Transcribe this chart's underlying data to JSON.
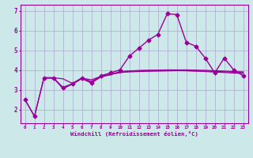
{
  "xlabel": "Windchill (Refroidissement éolien,°C)",
  "background_color": "#cce8e8",
  "line_color": "#990099",
  "grid_color": "#aaaacc",
  "x_ticks": [
    0,
    1,
    2,
    3,
    4,
    5,
    6,
    7,
    8,
    9,
    10,
    11,
    12,
    13,
    14,
    15,
    16,
    17,
    18,
    19,
    20,
    21,
    22,
    23
  ],
  "y_ticks": [
    2,
    3,
    4,
    5,
    6,
    7
  ],
  "xlim": [
    -0.5,
    23.5
  ],
  "ylim": [
    1.3,
    7.3
  ],
  "series": [
    {
      "x": [
        0,
        1,
        2,
        3,
        4,
        5,
        6,
        7,
        8,
        9,
        10,
        11,
        12,
        13,
        14,
        15,
        16,
        17,
        18,
        19,
        20,
        21,
        22,
        23
      ],
      "y": [
        2.5,
        1.65,
        3.6,
        3.6,
        3.1,
        3.3,
        3.6,
        3.35,
        3.7,
        3.85,
        4.0,
        4.7,
        5.1,
        5.5,
        5.8,
        6.85,
        6.8,
        5.4,
        5.2,
        4.6,
        3.85,
        4.6,
        4.0,
        3.7
      ],
      "marker": true,
      "markersize": 2.5,
      "linewidth": 1.0
    },
    {
      "x": [
        2,
        3,
        4,
        5,
        6,
        7,
        8,
        9,
        10,
        11,
        12,
        13,
        14,
        15,
        16,
        17,
        18,
        19,
        20,
        21,
        22,
        23
      ],
      "y": [
        3.6,
        3.6,
        3.05,
        3.28,
        3.56,
        3.33,
        3.65,
        3.75,
        3.92,
        3.95,
        3.97,
        3.98,
        3.99,
        4.0,
        4.0,
        4.0,
        3.99,
        3.98,
        3.96,
        3.94,
        3.92,
        3.9
      ],
      "marker": false,
      "markersize": 0,
      "linewidth": 0.9
    },
    {
      "x": [
        2,
        3,
        4,
        5,
        6,
        7,
        8,
        9,
        10,
        11,
        12,
        13,
        14,
        15,
        16,
        17,
        18,
        19,
        20,
        21,
        22,
        23
      ],
      "y": [
        3.6,
        3.6,
        3.55,
        3.32,
        3.58,
        3.5,
        3.67,
        3.77,
        3.87,
        3.9,
        3.92,
        3.93,
        3.94,
        3.95,
        3.96,
        3.96,
        3.95,
        3.94,
        3.93,
        3.91,
        3.89,
        3.87
      ],
      "marker": false,
      "markersize": 0,
      "linewidth": 0.9
    },
    {
      "x": [
        0,
        1,
        2,
        3,
        4,
        5,
        6,
        7,
        8,
        9,
        10,
        11,
        12,
        13,
        14,
        15,
        16,
        17,
        18,
        19,
        20,
        21,
        22,
        23
      ],
      "y": [
        2.5,
        1.65,
        3.6,
        3.57,
        3.12,
        3.29,
        3.57,
        3.42,
        3.66,
        3.78,
        3.86,
        3.93,
        3.96,
        3.97,
        3.97,
        3.98,
        3.97,
        3.96,
        3.94,
        3.92,
        3.89,
        3.87,
        3.84,
        3.82
      ],
      "marker": false,
      "markersize": 0,
      "linewidth": 0.9
    }
  ]
}
